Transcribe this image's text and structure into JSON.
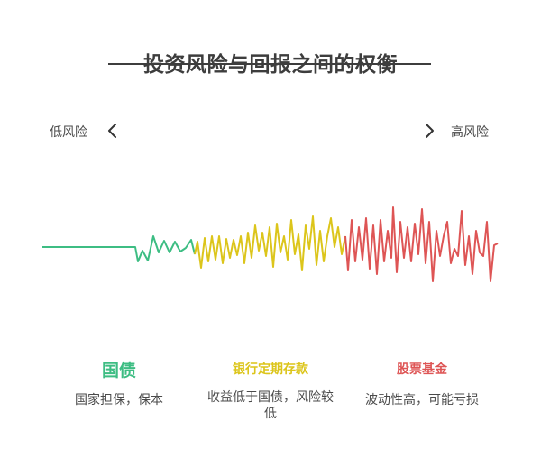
{
  "title": "投资风险与回报之间的权衡",
  "labels": {
    "low": "低风险",
    "high": "高风险"
  },
  "colors": {
    "green": "#3dbd83",
    "yellow": "#dcc51b",
    "red": "#de5555",
    "text": "#4a4a4a"
  },
  "categories": [
    {
      "name": "国债",
      "desc": "国家担保，保本",
      "color": "#3dbd83"
    },
    {
      "name": "银行定期存款",
      "desc": "收益低于国债，风险较低",
      "color": "#dcc51b"
    },
    {
      "name": "股票基金",
      "desc": "波动性高，可能亏损",
      "color": "#de5555"
    }
  ],
  "icons": {
    "left": "chevron-left-icon",
    "right": "chevron-right-icon"
  }
}
